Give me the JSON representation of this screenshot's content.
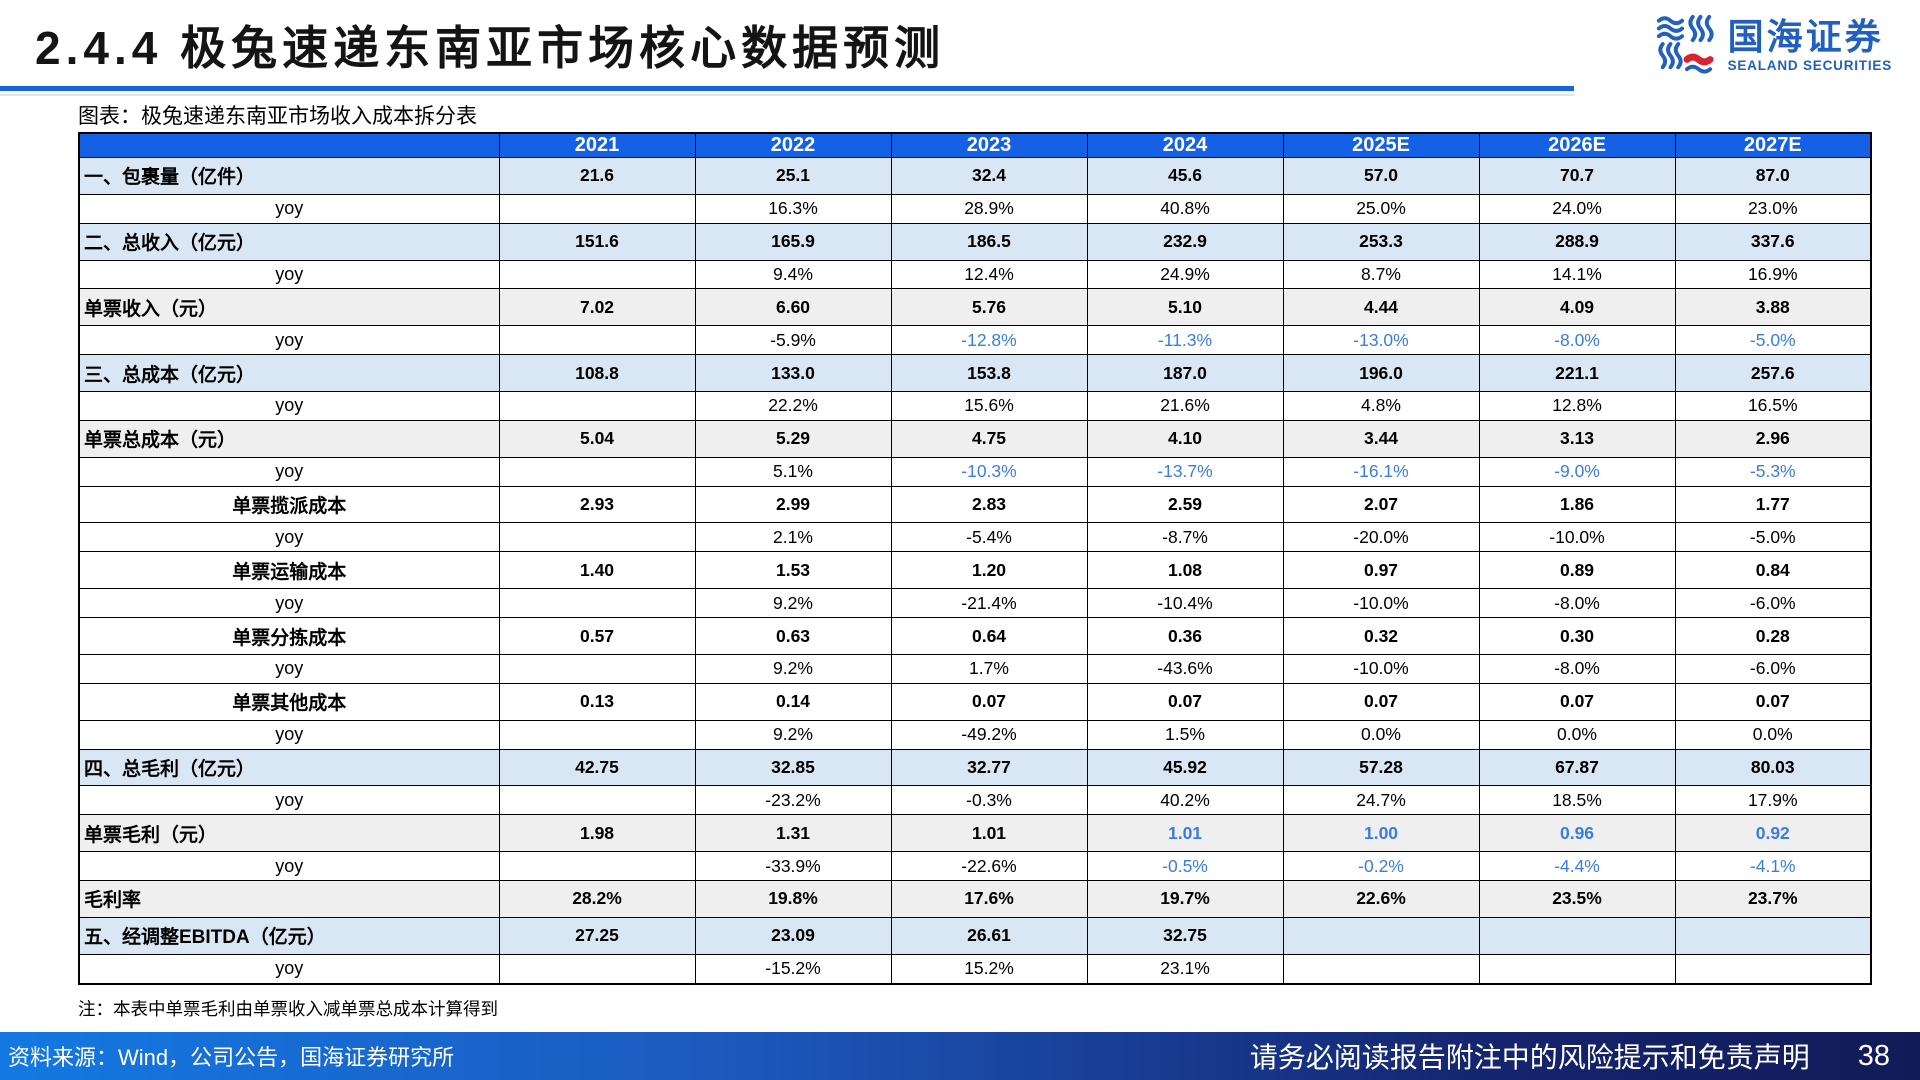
{
  "page": {
    "title": "2.4.4 极兔速递东南亚市场核心数据预测",
    "caption": "图表：极兔速递东南亚市场收入成本拆分表",
    "footnote": "注：本表中单票毛利由单票收入减单票总成本计算得到"
  },
  "logo": {
    "name_cn": "国海证券",
    "name_en": "SEALAND SECURITIES"
  },
  "footer": {
    "source": "资料来源：Wind，公司公告，国海证券研究所",
    "disclaimer": "请务必阅读报告附注中的风险提示和免责声明",
    "page_number": "38"
  },
  "colors": {
    "header_blue": "#1561e6",
    "section_row_bg": "#d9e7f5",
    "gray_row_bg": "#efefef",
    "accent_blue_text": "#3a7de0",
    "title_rule_blue": "#1565dd",
    "logo_blue": "#2160bf",
    "logo_red": "#d8242e"
  },
  "table": {
    "columns": [
      "",
      "2021",
      "2022",
      "2023",
      "2024",
      "2025E",
      "2026E",
      "2027E"
    ],
    "rows": [
      {
        "label": "一、包裹量（亿件）",
        "style": "section",
        "values": [
          "21.6",
          "25.1",
          "32.4",
          "45.6",
          "57.0",
          "70.7",
          "87.0"
        ],
        "blue": []
      },
      {
        "label": "yoy",
        "style": "yoy",
        "values": [
          "",
          "16.3%",
          "28.9%",
          "40.8%",
          "25.0%",
          "24.0%",
          "23.0%"
        ],
        "blue": []
      },
      {
        "label": "二、总收入（亿元）",
        "style": "section",
        "values": [
          "151.6",
          "165.9",
          "186.5",
          "232.9",
          "253.3",
          "288.9",
          "337.6"
        ],
        "blue": []
      },
      {
        "label": "yoy",
        "style": "yoy",
        "values": [
          "",
          "9.4%",
          "12.4%",
          "24.9%",
          "8.7%",
          "14.1%",
          "16.9%"
        ],
        "blue": []
      },
      {
        "label": "单票收入（元）",
        "style": "gray",
        "values": [
          "7.02",
          "6.60",
          "5.76",
          "5.10",
          "4.44",
          "4.09",
          "3.88"
        ],
        "blue": []
      },
      {
        "label": "yoy",
        "style": "yoy",
        "values": [
          "",
          "-5.9%",
          "-12.8%",
          "-11.3%",
          "-13.0%",
          "-8.0%",
          "-5.0%"
        ],
        "blue": [
          2,
          3,
          4,
          5,
          6
        ]
      },
      {
        "label": "三、总成本（亿元）",
        "style": "section",
        "values": [
          "108.8",
          "133.0",
          "153.8",
          "187.0",
          "196.0",
          "221.1",
          "257.6"
        ],
        "blue": []
      },
      {
        "label": "yoy",
        "style": "yoy",
        "values": [
          "",
          "22.2%",
          "15.6%",
          "21.6%",
          "4.8%",
          "12.8%",
          "16.5%"
        ],
        "blue": []
      },
      {
        "label": "单票总成本（元）",
        "style": "gray",
        "values": [
          "5.04",
          "5.29",
          "4.75",
          "4.10",
          "3.44",
          "3.13",
          "2.96"
        ],
        "blue": []
      },
      {
        "label": "yoy",
        "style": "yoy",
        "values": [
          "",
          "5.1%",
          "-10.3%",
          "-13.7%",
          "-16.1%",
          "-9.0%",
          "-5.3%"
        ],
        "blue": [
          2,
          3,
          4,
          5,
          6
        ]
      },
      {
        "label": "单票揽派成本",
        "style": "sub",
        "values": [
          "2.93",
          "2.99",
          "2.83",
          "2.59",
          "2.07",
          "1.86",
          "1.77"
        ],
        "blue": []
      },
      {
        "label": "yoy",
        "style": "yoy",
        "values": [
          "",
          "2.1%",
          "-5.4%",
          "-8.7%",
          "-20.0%",
          "-10.0%",
          "-5.0%"
        ],
        "blue": []
      },
      {
        "label": "单票运输成本",
        "style": "sub",
        "values": [
          "1.40",
          "1.53",
          "1.20",
          "1.08",
          "0.97",
          "0.89",
          "0.84"
        ],
        "blue": []
      },
      {
        "label": "yoy",
        "style": "yoy",
        "values": [
          "",
          "9.2%",
          "-21.4%",
          "-10.4%",
          "-10.0%",
          "-8.0%",
          "-6.0%"
        ],
        "blue": []
      },
      {
        "label": "单票分拣成本",
        "style": "sub",
        "values": [
          "0.57",
          "0.63",
          "0.64",
          "0.36",
          "0.32",
          "0.30",
          "0.28"
        ],
        "blue": []
      },
      {
        "label": "yoy",
        "style": "yoy",
        "values": [
          "",
          "9.2%",
          "1.7%",
          "-43.6%",
          "-10.0%",
          "-8.0%",
          "-6.0%"
        ],
        "blue": []
      },
      {
        "label": "单票其他成本",
        "style": "sub",
        "values": [
          "0.13",
          "0.14",
          "0.07",
          "0.07",
          "0.07",
          "0.07",
          "0.07"
        ],
        "blue": []
      },
      {
        "label": "yoy",
        "style": "yoy",
        "values": [
          "",
          "9.2%",
          "-49.2%",
          "1.5%",
          "0.0%",
          "0.0%",
          "0.0%"
        ],
        "blue": []
      },
      {
        "label": "四、总毛利（亿元）",
        "style": "section",
        "values": [
          "42.75",
          "32.85",
          "32.77",
          "45.92",
          "57.28",
          "67.87",
          "80.03"
        ],
        "blue": []
      },
      {
        "label": "yoy",
        "style": "yoy",
        "values": [
          "",
          "-23.2%",
          "-0.3%",
          "40.2%",
          "24.7%",
          "18.5%",
          "17.9%"
        ],
        "blue": []
      },
      {
        "label": "单票毛利（元）",
        "style": "gray",
        "values": [
          "1.98",
          "1.31",
          "1.01",
          "1.01",
          "1.00",
          "0.96",
          "0.92"
        ],
        "blue": [
          3,
          4,
          5,
          6
        ]
      },
      {
        "label": "yoy",
        "style": "yoy",
        "values": [
          "",
          "-33.9%",
          "-22.6%",
          "-0.5%",
          "-0.2%",
          "-4.4%",
          "-4.1%"
        ],
        "blue": [
          3,
          4,
          5,
          6
        ]
      },
      {
        "label": "毛利率",
        "style": "gray",
        "values": [
          "28.2%",
          "19.8%",
          "17.6%",
          "19.7%",
          "22.6%",
          "23.5%",
          "23.7%"
        ],
        "blue": []
      },
      {
        "label": "五、经调整EBITDA（亿元）",
        "style": "section",
        "values": [
          "27.25",
          "23.09",
          "26.61",
          "32.75",
          "",
          "",
          ""
        ],
        "blue": []
      },
      {
        "label": "yoy",
        "style": "yoy",
        "values": [
          "",
          "-15.2%",
          "15.2%",
          "23.1%",
          "",
          "",
          ""
        ],
        "blue": []
      }
    ]
  }
}
